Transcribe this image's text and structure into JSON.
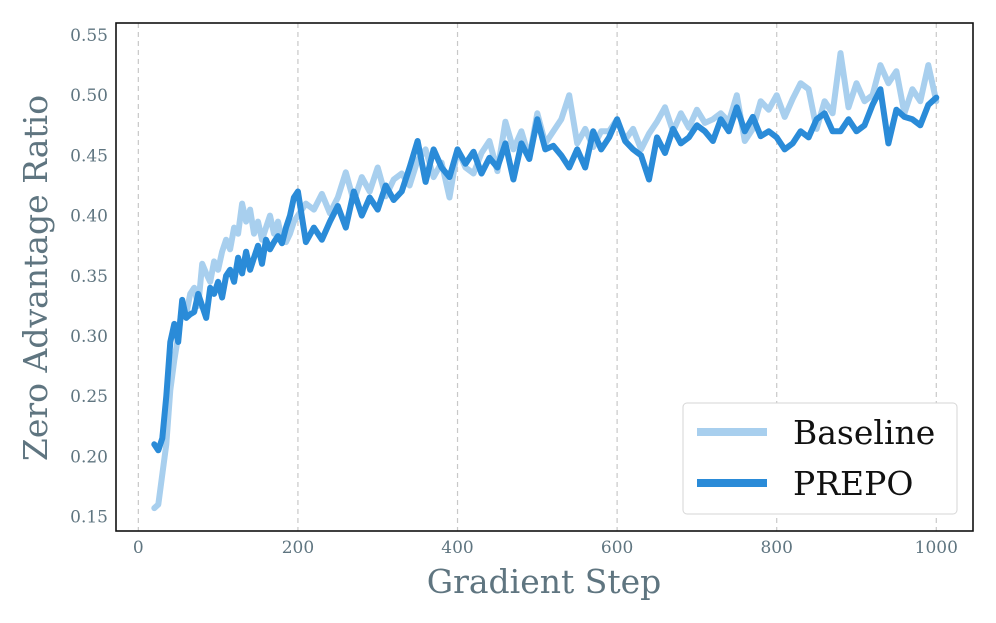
{
  "chart_data": {
    "type": "line",
    "title": "",
    "xlabel": "Gradient Step",
    "ylabel": "Zero Advantage Ratio",
    "xlim": [
      -28,
      1046
    ],
    "ylim": [
      0.138,
      0.56
    ],
    "xticks": [
      0,
      200,
      400,
      600,
      800,
      1000
    ],
    "xtick_labels": [
      "0",
      "200",
      "400",
      "600",
      "800",
      "1000"
    ],
    "yticks": [
      0.15,
      0.2,
      0.25,
      0.3,
      0.35,
      0.4,
      0.45,
      0.5,
      0.55
    ],
    "ytick_labels": [
      "0.15",
      "0.20",
      "0.25",
      "0.30",
      "0.35",
      "0.40",
      "0.45",
      "0.50",
      "0.55"
    ],
    "grid": "vertical dashed",
    "legend_position": "bottom-right",
    "series": [
      {
        "name": "Baseline",
        "color": "#a8cfee",
        "x": [
          20,
          25,
          30,
          35,
          40,
          45,
          50,
          55,
          60,
          65,
          70,
          75,
          80,
          85,
          90,
          95,
          100,
          105,
          110,
          115,
          120,
          125,
          130,
          135,
          140,
          145,
          150,
          155,
          160,
          165,
          170,
          175,
          180,
          185,
          190,
          195,
          200,
          210,
          220,
          230,
          240,
          250,
          260,
          270,
          280,
          290,
          300,
          310,
          320,
          330,
          340,
          350,
          360,
          370,
          380,
          390,
          400,
          410,
          420,
          430,
          440,
          450,
          460,
          470,
          480,
          490,
          500,
          510,
          520,
          530,
          540,
          550,
          560,
          570,
          580,
          590,
          600,
          610,
          620,
          630,
          640,
          650,
          660,
          670,
          680,
          690,
          700,
          710,
          720,
          730,
          740,
          750,
          760,
          770,
          780,
          790,
          800,
          810,
          820,
          830,
          840,
          850,
          860,
          870,
          880,
          890,
          900,
          910,
          920,
          930,
          940,
          950,
          960,
          970,
          980,
          990,
          1000
        ],
        "values": [
          0.157,
          0.16,
          0.185,
          0.21,
          0.255,
          0.28,
          0.3,
          0.325,
          0.318,
          0.335,
          0.34,
          0.325,
          0.36,
          0.352,
          0.345,
          0.362,
          0.355,
          0.37,
          0.38,
          0.372,
          0.39,
          0.385,
          0.41,
          0.395,
          0.405,
          0.385,
          0.395,
          0.38,
          0.39,
          0.4,
          0.385,
          0.395,
          0.38,
          0.378,
          0.385,
          0.395,
          0.4,
          0.41,
          0.405,
          0.418,
          0.402,
          0.415,
          0.436,
          0.412,
          0.432,
          0.42,
          0.44,
          0.416,
          0.43,
          0.435,
          0.425,
          0.446,
          0.455,
          0.432,
          0.444,
          0.415,
          0.455,
          0.44,
          0.435,
          0.452,
          0.462,
          0.437,
          0.478,
          0.455,
          0.47,
          0.448,
          0.485,
          0.46,
          0.47,
          0.48,
          0.5,
          0.46,
          0.472,
          0.457,
          0.47,
          0.47,
          0.48,
          0.463,
          0.472,
          0.455,
          0.468,
          0.478,
          0.49,
          0.47,
          0.485,
          0.473,
          0.488,
          0.477,
          0.48,
          0.485,
          0.478,
          0.5,
          0.462,
          0.472,
          0.495,
          0.488,
          0.5,
          0.482,
          0.497,
          0.51,
          0.505,
          0.472,
          0.495,
          0.485,
          0.535,
          0.49,
          0.51,
          0.495,
          0.5,
          0.525,
          0.51,
          0.52,
          0.485,
          0.505,
          0.495,
          0.525,
          0.495
        ]
      },
      {
        "name": "PREPO",
        "color": "#2a8bd8",
        "x": [
          20,
          25,
          30,
          35,
          40,
          45,
          50,
          55,
          60,
          65,
          70,
          75,
          80,
          85,
          90,
          95,
          100,
          105,
          110,
          115,
          120,
          125,
          130,
          135,
          140,
          145,
          150,
          155,
          160,
          165,
          170,
          175,
          180,
          185,
          190,
          195,
          200,
          210,
          220,
          230,
          240,
          250,
          260,
          270,
          280,
          290,
          300,
          310,
          320,
          330,
          340,
          350,
          360,
          370,
          380,
          390,
          400,
          410,
          420,
          430,
          440,
          450,
          460,
          470,
          480,
          490,
          500,
          510,
          520,
          530,
          540,
          550,
          560,
          570,
          580,
          590,
          600,
          610,
          620,
          630,
          640,
          650,
          660,
          670,
          680,
          690,
          700,
          710,
          720,
          730,
          740,
          750,
          760,
          770,
          780,
          790,
          800,
          810,
          820,
          830,
          840,
          850,
          860,
          870,
          880,
          890,
          900,
          910,
          920,
          930,
          940,
          950,
          960,
          970,
          980,
          990,
          1000
        ],
        "values": [
          0.21,
          0.205,
          0.215,
          0.25,
          0.295,
          0.31,
          0.295,
          0.33,
          0.315,
          0.318,
          0.32,
          0.335,
          0.325,
          0.315,
          0.34,
          0.335,
          0.345,
          0.332,
          0.35,
          0.355,
          0.345,
          0.365,
          0.352,
          0.37,
          0.355,
          0.365,
          0.375,
          0.36,
          0.38,
          0.372,
          0.378,
          0.383,
          0.377,
          0.39,
          0.4,
          0.415,
          0.42,
          0.378,
          0.39,
          0.38,
          0.395,
          0.408,
          0.39,
          0.42,
          0.4,
          0.415,
          0.405,
          0.425,
          0.413,
          0.42,
          0.44,
          0.462,
          0.428,
          0.455,
          0.44,
          0.432,
          0.455,
          0.443,
          0.453,
          0.435,
          0.448,
          0.44,
          0.46,
          0.43,
          0.46,
          0.447,
          0.48,
          0.455,
          0.458,
          0.45,
          0.44,
          0.455,
          0.44,
          0.47,
          0.455,
          0.465,
          0.48,
          0.462,
          0.455,
          0.45,
          0.43,
          0.465,
          0.452,
          0.472,
          0.46,
          0.465,
          0.475,
          0.47,
          0.462,
          0.48,
          0.47,
          0.49,
          0.47,
          0.482,
          0.466,
          0.47,
          0.465,
          0.455,
          0.46,
          0.47,
          0.465,
          0.48,
          0.485,
          0.47,
          0.47,
          0.48,
          0.47,
          0.475,
          0.492,
          0.505,
          0.46,
          0.488,
          0.482,
          0.48,
          0.475,
          0.492,
          0.498
        ]
      }
    ]
  }
}
